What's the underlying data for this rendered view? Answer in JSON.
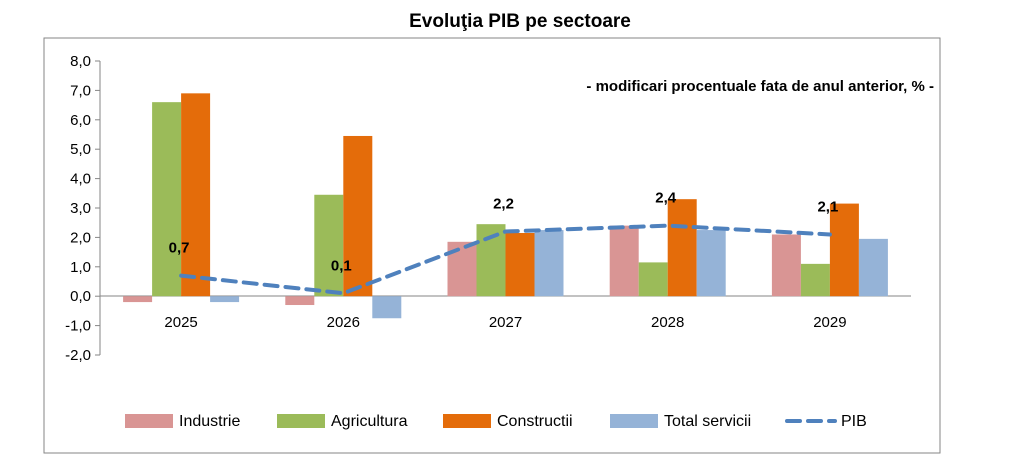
{
  "chart_data": {
    "type": "bar",
    "title": "Evoluţia PIB pe sectoare",
    "subtitle": "- modificari procentuale fata de anul anterior, % -",
    "categories": [
      "2025",
      "2026",
      "2027",
      "2028",
      "2029"
    ],
    "ylim": [
      -2.0,
      8.0
    ],
    "yticks": [
      "8,0",
      "7,0",
      "6,0",
      "5,0",
      "4,0",
      "3,0",
      "2,0",
      "1,0",
      "0,0",
      "-1,0",
      "-2,0"
    ],
    "grid": false,
    "legend_position": "bottom",
    "series": [
      {
        "name": "Industrie",
        "type": "bar",
        "color": "#D99594",
        "values": [
          -0.2,
          -0.3,
          1.85,
          2.4,
          2.1
        ]
      },
      {
        "name": "Agricultura",
        "type": "bar",
        "color": "#9BBB59",
        "values": [
          6.6,
          3.45,
          2.45,
          1.15,
          1.1
        ]
      },
      {
        "name": "Constructii",
        "type": "bar",
        "color": "#E46C0A",
        "values": [
          6.9,
          5.45,
          2.15,
          3.3,
          3.15
        ]
      },
      {
        "name": "Total servicii",
        "type": "bar",
        "color": "#95B3D7",
        "values": [
          -0.2,
          -0.75,
          2.25,
          2.25,
          1.95
        ]
      },
      {
        "name": "PIB",
        "type": "line",
        "style": "dashed",
        "color": "#4F81BD",
        "values": [
          0.7,
          0.1,
          2.2,
          2.4,
          2.1
        ],
        "labels": [
          "0,7",
          "0,1",
          "2,2",
          "2,4",
          "2,1"
        ]
      }
    ]
  }
}
